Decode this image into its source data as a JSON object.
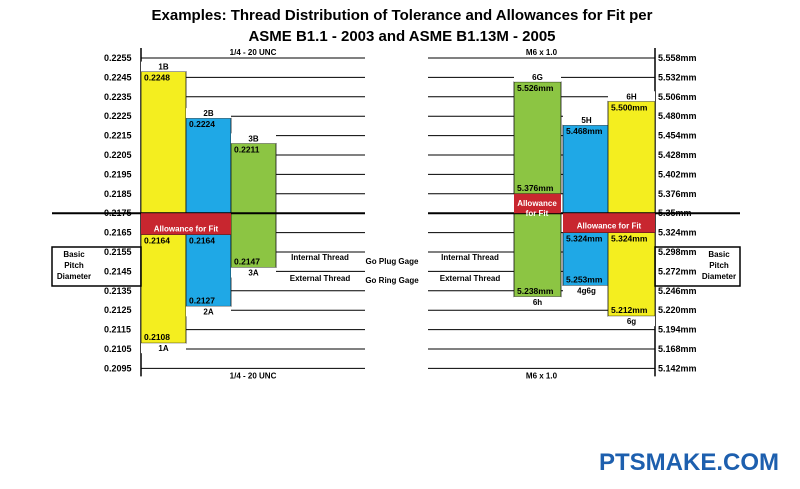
{
  "title_line1": "Examples: Thread Distribution of Tolerance and Allowances for Fit per",
  "title_line2": "ASME B1.1 - 2003 and ASME B1.13M - 2005",
  "watermark": "PTSMAKE.COM",
  "colors": {
    "yellow": "#f4ee1f",
    "blue": "#1fa8e6",
    "green": "#8cc543",
    "red": "#c8262f",
    "accent": "#1d5fae"
  },
  "left": {
    "header": "1/4 - 20 UNC",
    "footer": "1/4 - 20 UNC",
    "ticks": [
      "0.2255",
      "0.2245",
      "0.2235",
      "0.2225",
      "0.2215",
      "0.2205",
      "0.2195",
      "0.2185",
      "0.2175",
      "0.2165",
      "0.2155",
      "0.2145",
      "0.2135",
      "0.2125",
      "0.2115",
      "0.2105",
      "0.2095"
    ],
    "basic_label": [
      "Basic",
      "Pitch",
      "Diameter"
    ],
    "internal_label": "Internal Thread",
    "external_label": "External Thread",
    "allowance_label": "Allowance for Fit"
  },
  "right": {
    "header": "M6 x 1.0",
    "footer": "M6 x 1.0",
    "ticks": [
      "5.558mm",
      "5.532mm",
      "5.506mm",
      "5.480mm",
      "5.454mm",
      "5.428mm",
      "5.402mm",
      "5.376mm",
      "5.35mm",
      "5.324mm",
      "5.298mm",
      "5.272mm",
      "5.246mm",
      "5.220mm",
      "5.194mm",
      "5.168mm",
      "5.142mm"
    ],
    "basic_label": [
      "Basic",
      "Pitch",
      "Diameter"
    ],
    "internal_label": "Internal Thread",
    "external_label": "External Thread",
    "allowance_label_upper": [
      "Allowance",
      "for Fit"
    ],
    "allowance_label_lower": "Allowance for Fit"
  },
  "gages": {
    "plug": "Go Plug Gage",
    "ring": "Go Ring Gage"
  },
  "chart_data": {
    "type": "bar",
    "title": "Examples: Thread Distribution of Tolerance and Allowances for Fit per ASME B1.1 - 2003 and ASME B1.13M - 2005",
    "charts": [
      {
        "name": "1/4 - 20 UNC",
        "units": "in",
        "basic_pitch_diameter": 0.2175,
        "ylim": [
          0.2095,
          0.2255
        ],
        "bars": [
          {
            "class": "1B",
            "color": "yellow",
            "max": 0.2248,
            "min": 0.2175,
            "max_label": "0.2248"
          },
          {
            "class": "2B",
            "color": "blue",
            "max": 0.2224,
            "min": 0.2175,
            "max_label": "0.2224"
          },
          {
            "class": "3B",
            "color": "green",
            "max": 0.2211,
            "min": 0.2175,
            "max_label": "0.2211"
          },
          {
            "class": "1A",
            "color": "yellow",
            "max": 0.2164,
            "min": 0.2108,
            "max_label": "0.2164",
            "min_label": "0.2108"
          },
          {
            "class": "2A",
            "color": "blue",
            "max": 0.2164,
            "min": 0.2127,
            "max_label": "0.2164",
            "min_label": "0.2127"
          },
          {
            "class": "3A",
            "color": "green",
            "max": 0.2175,
            "min": 0.2147,
            "min_label": "0.2147"
          }
        ],
        "allowance": {
          "from": 0.2175,
          "to": 0.2164
        }
      },
      {
        "name": "M6 x 1.0",
        "units": "mm",
        "basic_pitch_diameter": 5.35,
        "ylim": [
          5.142,
          5.558
        ],
        "bars": [
          {
            "class": "6G",
            "color": "green",
            "max": 5.526,
            "min": 5.376,
            "max_label": "5.526mm",
            "min_label": "5.376mm"
          },
          {
            "class": "5H",
            "color": "blue",
            "max": 5.468,
            "min": 5.35,
            "max_label": "5.468mm"
          },
          {
            "class": "6H",
            "color": "yellow",
            "max": 5.5,
            "min": 5.35,
            "max_label": "5.500mm"
          },
          {
            "class": "6h",
            "color": "green",
            "max": 5.35,
            "min": 5.238,
            "min_label": "5.238mm"
          },
          {
            "class": "4g6g",
            "color": "blue",
            "max": 5.324,
            "min": 5.253,
            "max_label": "5.324mm",
            "min_label": "5.253mm"
          },
          {
            "class": "6g",
            "color": "yellow",
            "max": 5.324,
            "min": 5.212,
            "max_label": "5.324mm",
            "min_label": "5.212mm"
          }
        ],
        "allowances": [
          {
            "from": 5.376,
            "to": 5.35
          },
          {
            "from": 5.35,
            "to": 5.324
          }
        ]
      }
    ]
  }
}
